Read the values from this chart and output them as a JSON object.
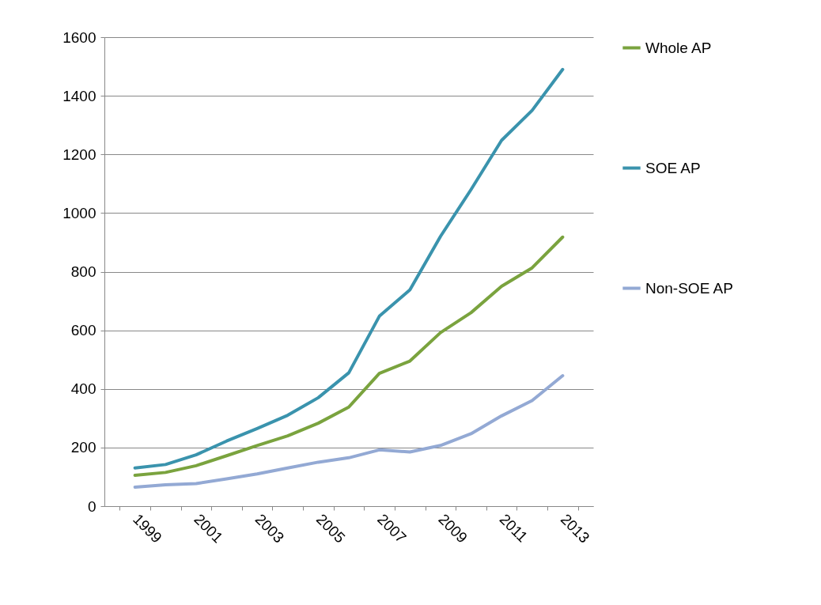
{
  "chart_data": {
    "type": "line",
    "categories": [
      "1999",
      null,
      "2001",
      null,
      "2003",
      null,
      "2005",
      null,
      "2007",
      null,
      "2009",
      null,
      "2011",
      null,
      "2013"
    ],
    "series": [
      {
        "name": "Whole AP",
        "color": "#7aa33e",
        "values": [
          105,
          115,
          138,
          172,
          207,
          240,
          283,
          338,
          453,
          495,
          592,
          660,
          750,
          813,
          918
        ]
      },
      {
        "name": "SOE AP",
        "color": "#3a93ad",
        "values": [
          130,
          142,
          175,
          222,
          265,
          310,
          370,
          455,
          648,
          738,
          920,
          1080,
          1248,
          1350,
          1490
        ]
      },
      {
        "name": "Non-SOE AP",
        "color": "#93a9d4",
        "values": [
          65,
          73,
          77,
          93,
          110,
          130,
          150,
          165,
          192,
          185,
          207,
          247,
          308,
          360,
          445
        ]
      }
    ],
    "ylim": [
      0,
      1600
    ],
    "yticks": [
      0,
      200,
      400,
      600,
      800,
      1000,
      1200,
      1400,
      1600
    ],
    "grid": "y",
    "legend": "right",
    "marker": "none",
    "line_style": "solid"
  }
}
